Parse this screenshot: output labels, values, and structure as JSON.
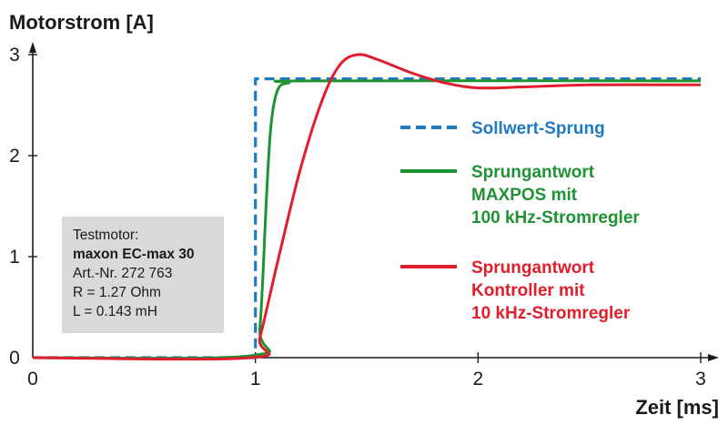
{
  "chart_data": {
    "type": "line",
    "ylabel": "Motorstrom [A]",
    "xlabel": "Zeit [ms]",
    "xlim": [
      0,
      3
    ],
    "ylim": [
      0,
      3
    ],
    "xticks": [
      "0",
      "1",
      "2",
      "3"
    ],
    "yticks": [
      "0",
      "1",
      "2",
      "3"
    ],
    "legend_position": "right",
    "series": [
      {
        "name": "Sollwert-Sprung",
        "color": "#1f7ac2",
        "style": "dashed",
        "points": [
          [
            0,
            0
          ],
          [
            1.0,
            0
          ],
          [
            1.0,
            2.76
          ],
          [
            3.0,
            2.76
          ]
        ]
      },
      {
        "name": "Sprungantwort\nMAXPOS mit\n100 kHz-Stromregler",
        "color": "#1f9234",
        "style": "solid",
        "points": [
          [
            0,
            0
          ],
          [
            0.98,
            0.02
          ],
          [
            1.02,
            0.3
          ],
          [
            1.05,
            1.6
          ],
          [
            1.07,
            2.3
          ],
          [
            1.1,
            2.65
          ],
          [
            1.15,
            2.72
          ],
          [
            1.25,
            2.74
          ],
          [
            3.0,
            2.74
          ]
        ]
      },
      {
        "name": "Sprungantwort\nKontroller mit\n10 kHz-Stromregler",
        "color": "#e01e2c",
        "style": "solid",
        "points": [
          [
            0,
            0
          ],
          [
            0.98,
            0.0
          ],
          [
            1.02,
            0.2
          ],
          [
            1.1,
            0.95
          ],
          [
            1.2,
            1.85
          ],
          [
            1.3,
            2.55
          ],
          [
            1.38,
            2.9
          ],
          [
            1.46,
            3.0
          ],
          [
            1.55,
            2.95
          ],
          [
            1.7,
            2.82
          ],
          [
            1.85,
            2.72
          ],
          [
            2.0,
            2.67
          ],
          [
            2.2,
            2.68
          ],
          [
            2.5,
            2.7
          ],
          [
            3.0,
            2.7
          ]
        ]
      }
    ]
  },
  "legend": {
    "items": [
      {
        "lines": [
          "Sollwert-Sprung"
        ]
      },
      {
        "lines": [
          "Sprungantwort",
          "MAXPOS mit",
          "100 kHz-Stromregler"
        ]
      },
      {
        "lines": [
          "Sprungantwort",
          "Kontroller mit",
          "10 kHz-Stromregler"
        ]
      }
    ]
  },
  "infobox": {
    "line1": "Testmotor:",
    "line2": "maxon EC-max 30",
    "line3": "Art.-Nr. 272 763",
    "line4": "R = 1.27 Ohm",
    "line5": "L = 0.143 mH"
  },
  "colors": {
    "box_bg": "#d9d9d9",
    "axis": "#1a1a1a"
  }
}
